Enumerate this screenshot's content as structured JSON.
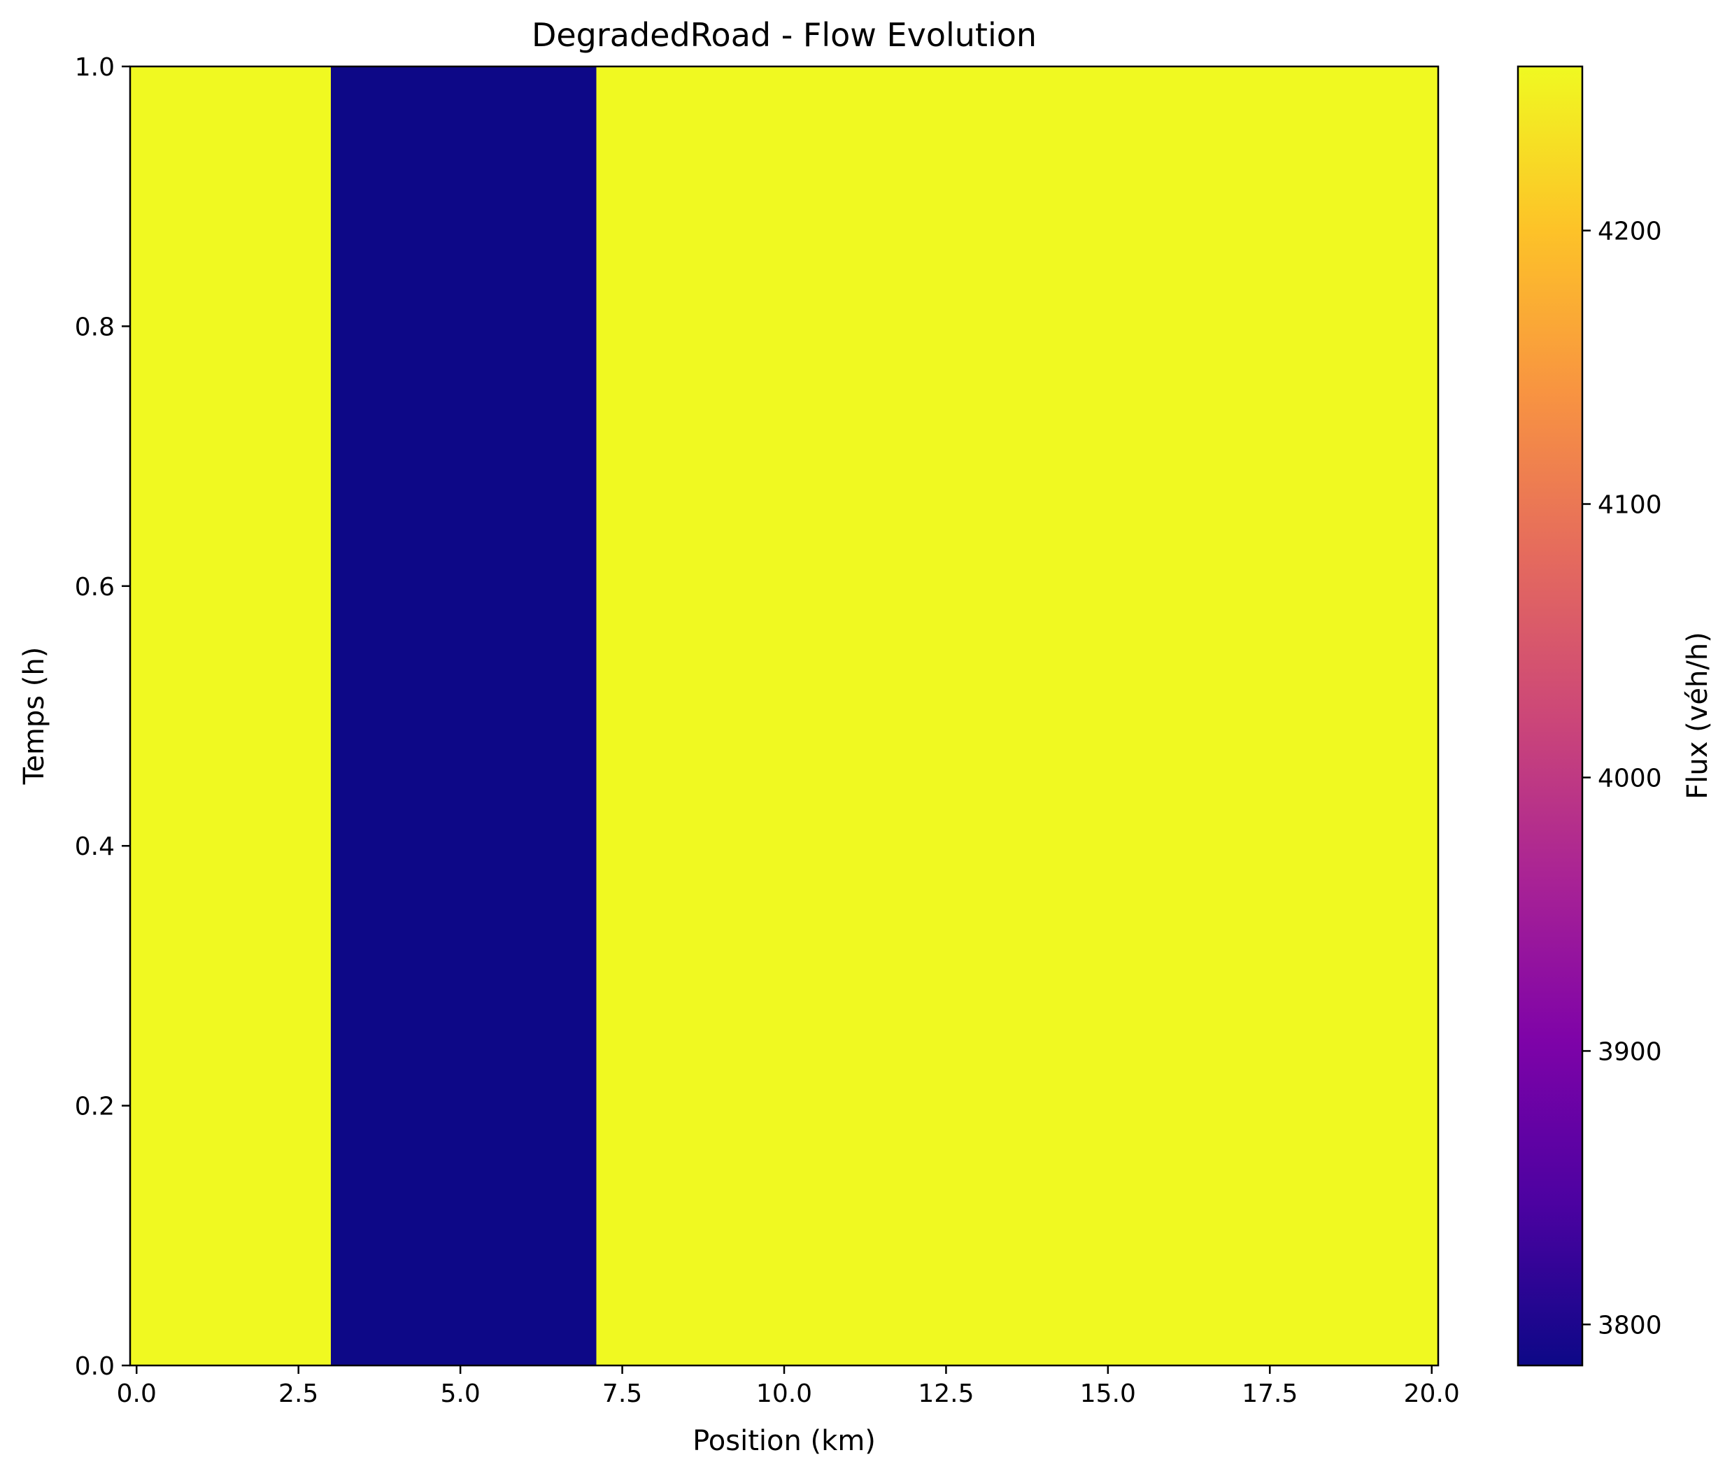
{
  "chart_data": {
    "type": "heatmap",
    "title": "DegradedRoad - Flow Evolution",
    "xlabel": "Position (km)",
    "ylabel": "Temps (h)",
    "xlim": [
      -0.1,
      20.1
    ],
    "ylim": [
      0.0,
      1.0
    ],
    "xticks": [
      0.0,
      2.5,
      5.0,
      7.5,
      10.0,
      12.5,
      15.0,
      17.5,
      20.0
    ],
    "xtick_labels": [
      "0.0",
      "2.5",
      "5.0",
      "7.5",
      "10.0",
      "12.5",
      "15.0",
      "17.5",
      "20.0"
    ],
    "yticks": [
      0.0,
      0.2,
      0.4,
      0.6,
      0.8,
      1.0
    ],
    "ytick_labels": [
      "0.0",
      "0.2",
      "0.4",
      "0.6",
      "0.8",
      "1.0"
    ],
    "colormap": "plasma",
    "segments": [
      {
        "x_start": -0.1,
        "x_end": 3.0,
        "t_start": 0.0,
        "t_end": 1.0,
        "flux": 4260
      },
      {
        "x_start": 3.0,
        "x_end": 7.1,
        "t_start": 0.0,
        "t_end": 1.0,
        "flux": 3785
      },
      {
        "x_start": 7.1,
        "x_end": 20.1,
        "t_start": 0.0,
        "t_end": 1.0,
        "flux": 4260
      }
    ],
    "colorbar": {
      "label": "Flux (véh/h)",
      "vmin": 3785,
      "vmax": 4260,
      "ticks": [
        3800,
        3900,
        4000,
        4100,
        4200
      ],
      "tick_labels": [
        "3800",
        "3900",
        "4000",
        "4100",
        "4200"
      ]
    },
    "grid": false
  }
}
